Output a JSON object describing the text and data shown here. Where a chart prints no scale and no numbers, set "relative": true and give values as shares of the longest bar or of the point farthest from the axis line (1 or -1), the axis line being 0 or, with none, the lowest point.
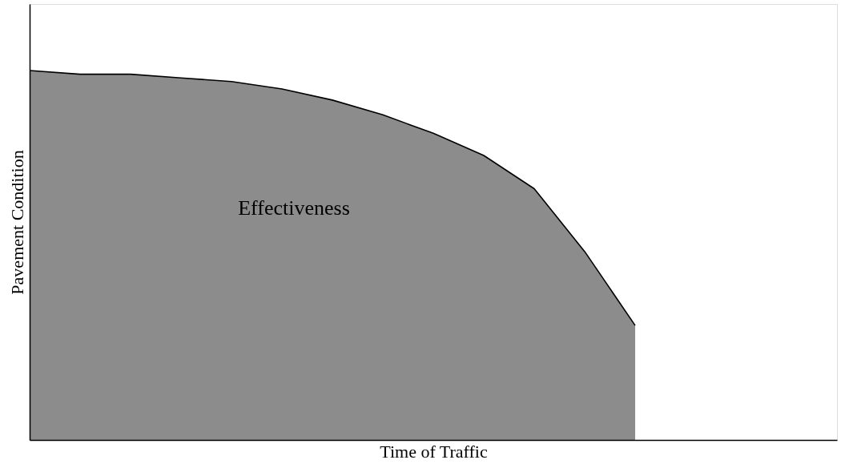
{
  "chart_data": {
    "type": "area",
    "relative": true,
    "xlabel": "Time of Traffic",
    "ylabel": "Pavement Condition",
    "categories": [
      null,
      null,
      null,
      null,
      null,
      null,
      null,
      null,
      null,
      null,
      null,
      null,
      null,
      null,
      null,
      null,
      null
    ],
    "series": [
      {
        "color": "#000000",
        "values": [
          1.0,
          0.99,
          0.99,
          0.98,
          0.97,
          0.95,
          0.92,
          0.88,
          0.83,
          0.77,
          0.68,
          0.51,
          0.31,
          null,
          null,
          null,
          null
        ]
      }
    ],
    "annotations": [
      "Effectiveness"
    ],
    "grid": false
  }
}
